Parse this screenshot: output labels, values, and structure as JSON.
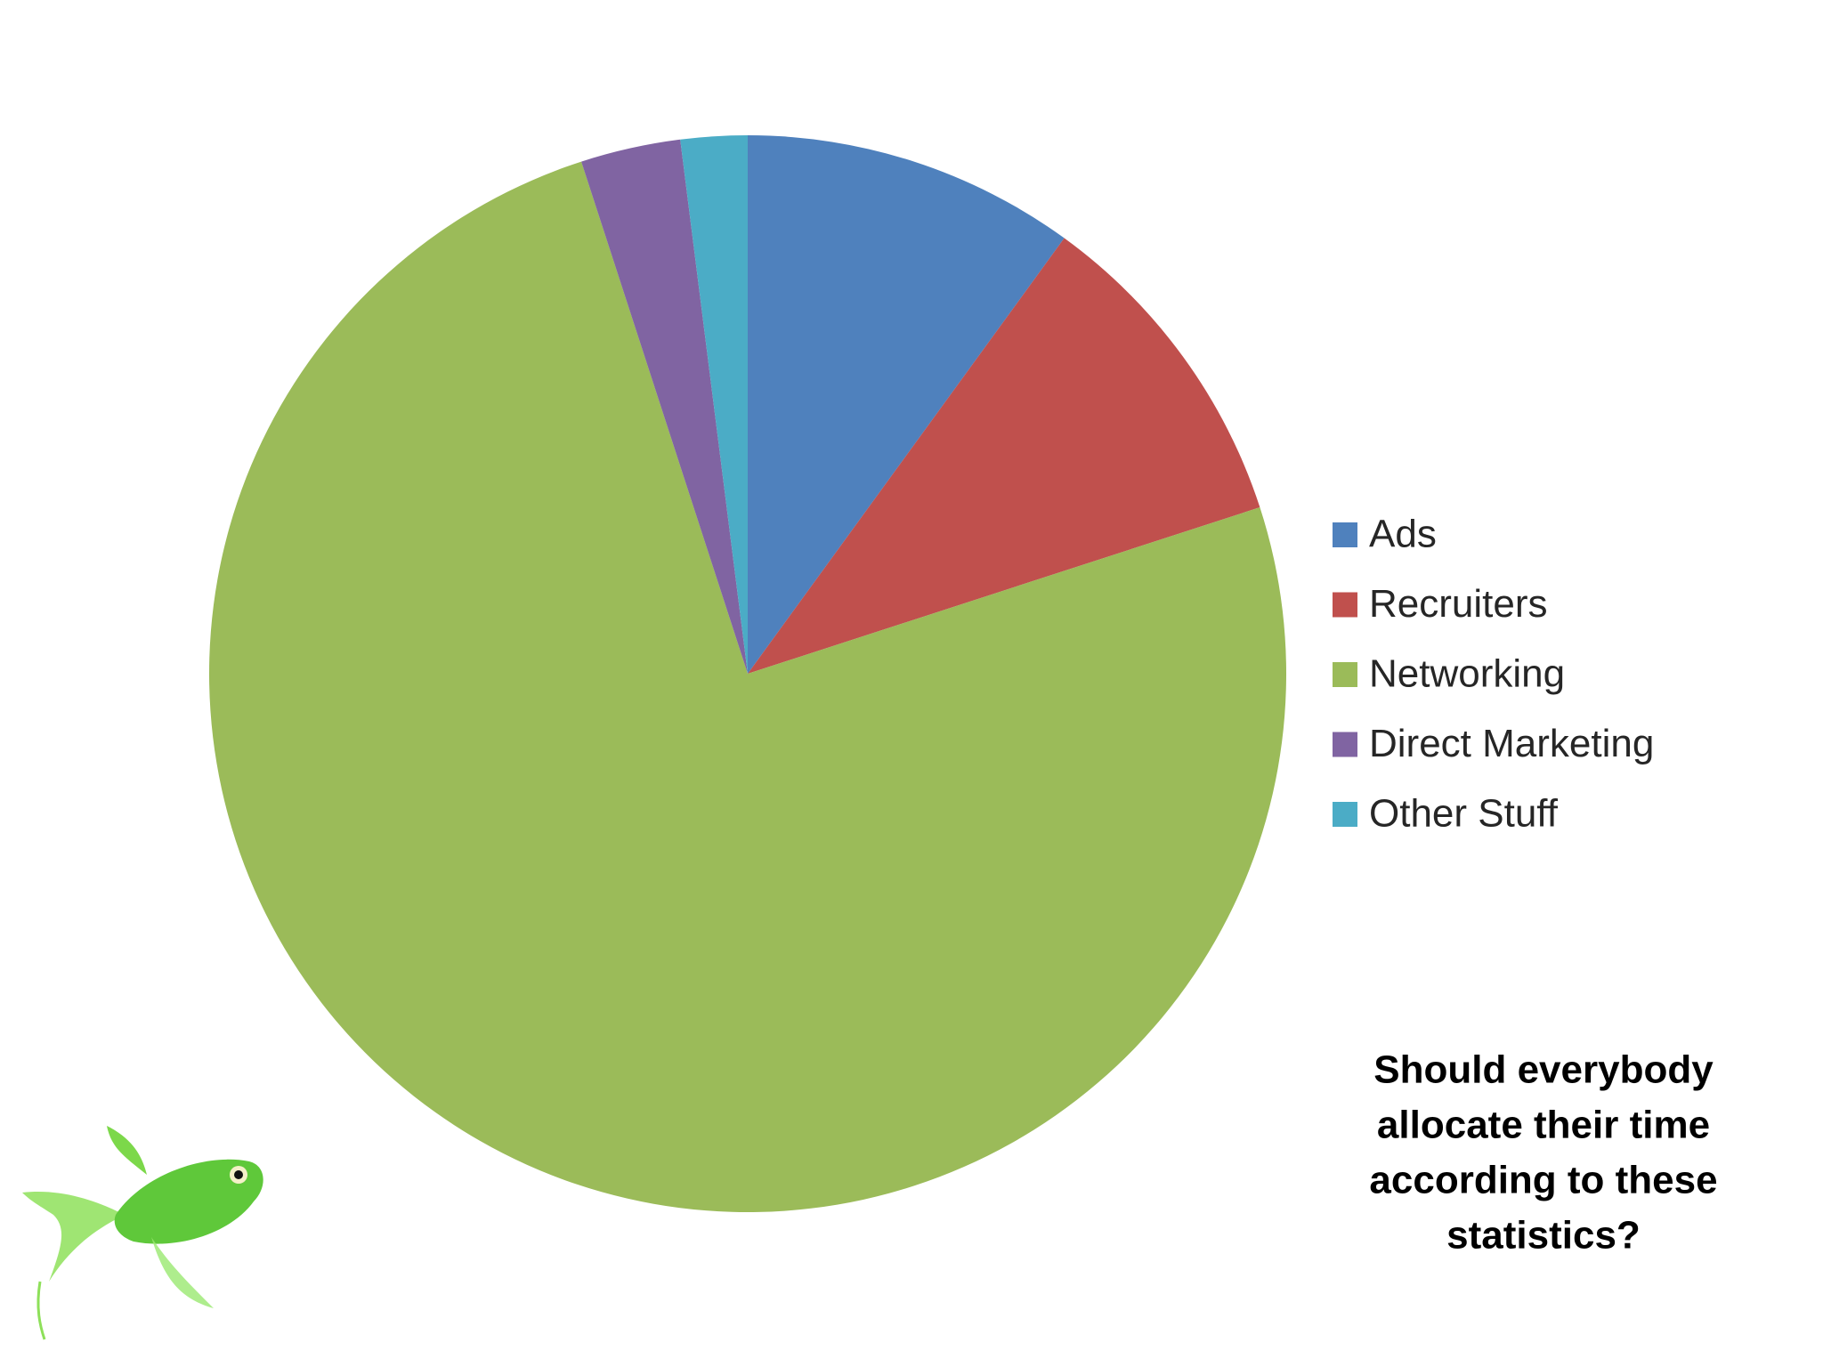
{
  "chart_data": {
    "type": "pie",
    "categories": [
      "Ads",
      "Recruiters",
      "Networking",
      "Direct  Marketing",
      "Other Stuff"
    ],
    "values": [
      10,
      10,
      75,
      3,
      2
    ],
    "colors": [
      "#4f81bd",
      "#c0504d",
      "#9bbb59",
      "#8064a2",
      "#4bacc6"
    ],
    "legend": "right"
  },
  "annotation": {
    "lines": [
      "Should everybody",
      "allocate their time",
      "according to these",
      "statistics?"
    ]
  }
}
